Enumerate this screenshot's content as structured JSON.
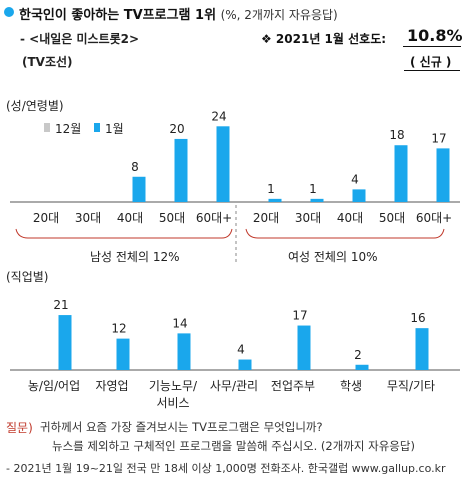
{
  "colors": {
    "accent": "#1aa7ec",
    "prev": "#c8c8c8",
    "bracket": "#c0392b",
    "question": "#c0392b"
  },
  "header": {
    "title": "한국인이 좋아하는 TV프로그램 1위",
    "title_note": "(%, 2개까지 자유응답)",
    "program_line": "- <내일은 미스트롯2>",
    "channel": "(TV조선)",
    "rank_label": "❖ 2021년 1월 선호도:",
    "rank_value": "10.8%",
    "new_tag": "( 신규 )"
  },
  "chart_data": [
    {
      "type": "bar",
      "section_label": "(성/연령별)",
      "legend": [
        "12월",
        "1월"
      ],
      "groups": [
        {
          "summary": "남성 전체의 12%",
          "categories": [
            "20대",
            "30대",
            "40대",
            "50대",
            "60대+"
          ],
          "series": [
            {
              "name": "1월",
              "values": [
                null,
                null,
                8,
                20,
                24
              ]
            }
          ]
        },
        {
          "summary": "여성 전체의 10%",
          "categories": [
            "20대",
            "30대",
            "40대",
            "50대",
            "60대+"
          ],
          "series": [
            {
              "name": "1월",
              "values": [
                1,
                1,
                4,
                18,
                17
              ]
            }
          ]
        }
      ],
      "ylim": [
        0,
        26
      ]
    },
    {
      "type": "bar",
      "section_label": "(직업별)",
      "categories": [
        "농/임/어업",
        "자영업",
        "기능노무/\n서비스",
        "사무/관리",
        "전업주부",
        "학생",
        "무직/기타"
      ],
      "series": [
        {
          "name": "1월",
          "values": [
            21,
            12,
            14,
            4,
            17,
            2,
            16
          ]
        }
      ],
      "ylim": [
        0,
        26
      ]
    }
  ],
  "question": {
    "label": "질문)",
    "line1": "귀하께서 요즘 가장 즐겨보시는 TV프로그램은 무엇입니까?",
    "line2": "뉴스를 제외하고 구체적인 프로그램을 말씀해 주십시오. (2개까지 자유응답)"
  },
  "footnote": "- 2021년 1월 19~21일 전국 만 18세 이상 1,000명 전화조사. 한국갤럽 www.gallup.co.kr"
}
